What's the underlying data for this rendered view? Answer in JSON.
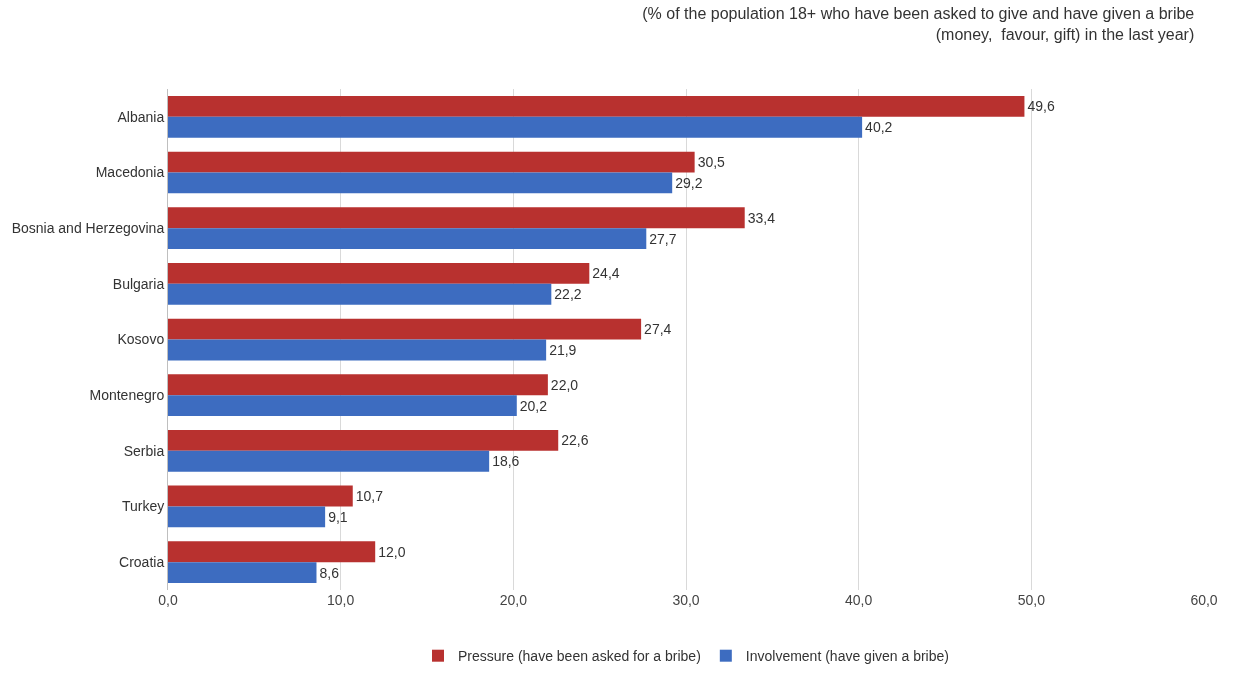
{
  "chart_data": {
    "type": "bar",
    "orientation": "horizontal",
    "title": "(% of the population 18+ who have been asked to give and have given a bribe\n(money,  favour, gift) in the last year)",
    "categories": [
      "Albania",
      "Macedonia",
      "Bosnia and Herzegovina",
      "Bulgaria",
      "Kosovo",
      "Montenegro",
      "Serbia",
      "Turkey",
      "Croatia"
    ],
    "series": [
      {
        "name": "Pressure (have been asked for a bribe)",
        "color": "#b8312f",
        "values": [
          49.6,
          30.5,
          33.4,
          24.4,
          27.4,
          22.0,
          22.6,
          10.7,
          12.0
        ],
        "value_labels": [
          "49,6",
          "30,5",
          "33,4",
          "24,4",
          "27,4",
          "22,0",
          "22,6",
          "10,7",
          "12,0"
        ]
      },
      {
        "name": "Involvement (have given a bribe)",
        "color": "#3d6cc0",
        "values": [
          40.2,
          29.2,
          27.7,
          22.2,
          21.9,
          20.2,
          18.6,
          9.1,
          8.6
        ],
        "value_labels": [
          "40,2",
          "29,2",
          "27,7",
          "22,2",
          "21,9",
          "20,2",
          "18,6",
          "9,1",
          "8,6"
        ]
      }
    ],
    "xlim": [
      0,
      60
    ],
    "xticks": [
      {
        "value": 0,
        "label": "0,0"
      },
      {
        "value": 10,
        "label": "10,0"
      },
      {
        "value": 20,
        "label": "20,0"
      },
      {
        "value": 30,
        "label": "30,0"
      },
      {
        "value": 40,
        "label": "40,0"
      },
      {
        "value": 50,
        "label": "50,0"
      },
      {
        "value": 60,
        "label": "60,0"
      }
    ],
    "grid": "x",
    "legend": "bottom"
  }
}
